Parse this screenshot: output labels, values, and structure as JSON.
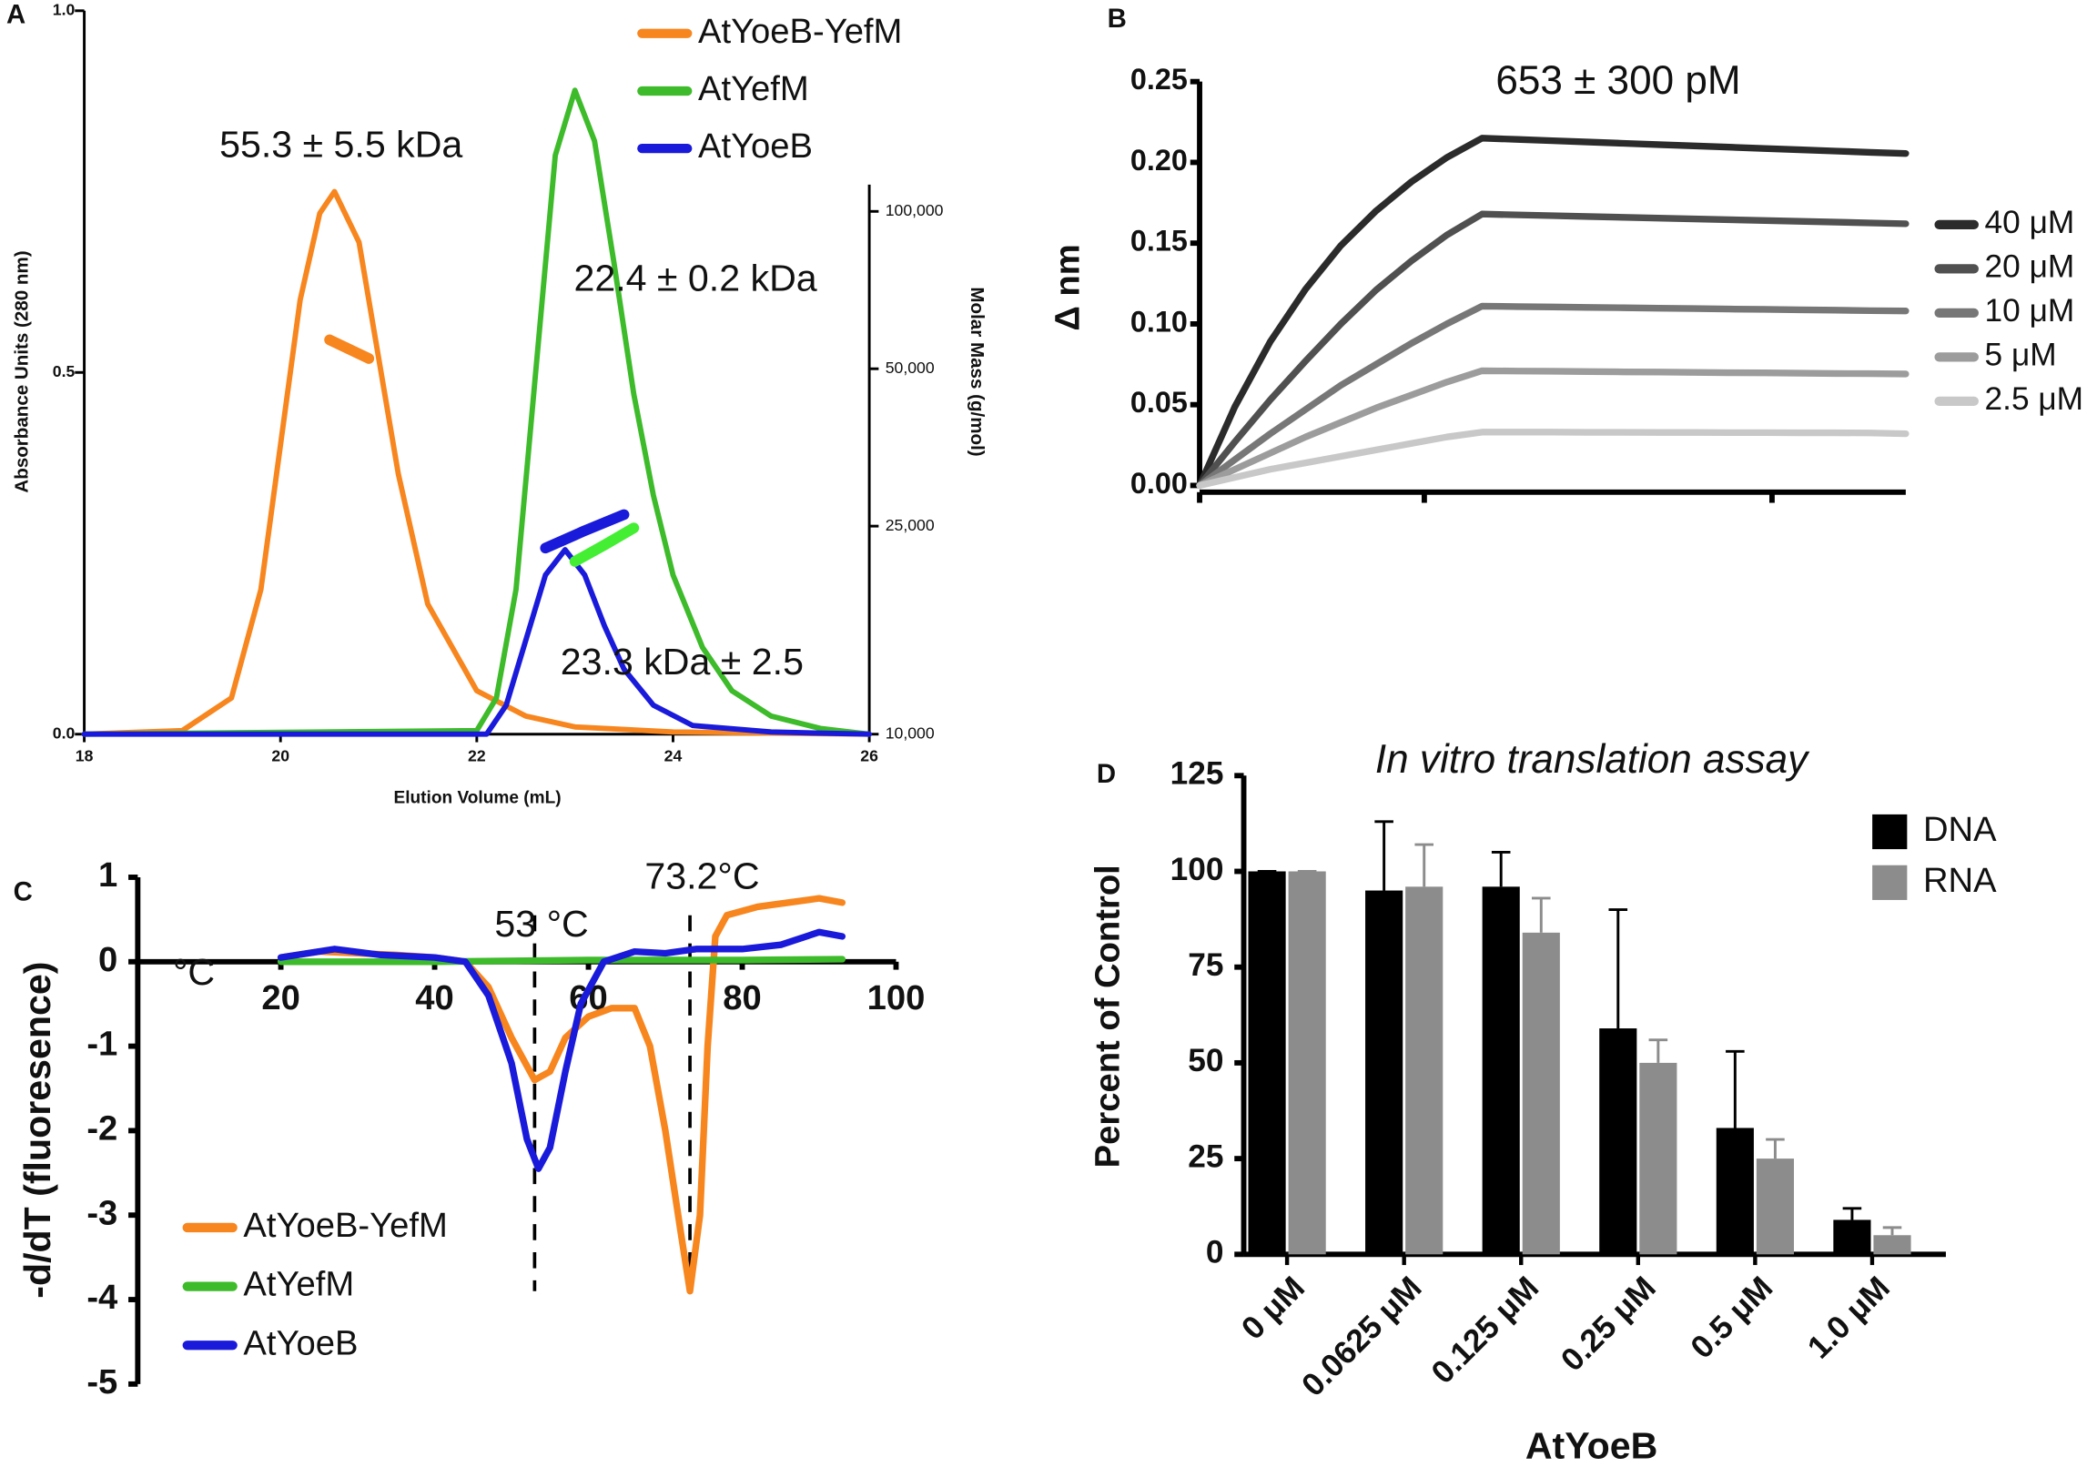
{
  "chart_data": [
    {
      "type": "line",
      "label": "A",
      "x_label": "Elution Volume (mL)",
      "y_label": "Absorbance Units (280 nm)",
      "y2_label": "Molar Mass (g/mol)",
      "annotations": [
        "55.3 ± 5.5 kDa",
        "22.4 ± 0.2 kDa",
        "23.3 kDa ± 2.5"
      ],
      "xlim": [
        18,
        26
      ],
      "xticks": [
        18,
        20,
        22,
        24,
        26
      ],
      "ylim": [
        0,
        1
      ],
      "yticks": [
        {
          "value": 0,
          "label": "0.0"
        },
        0.5,
        {
          "value": 1,
          "label": "1.0"
        }
      ],
      "y2lim": [
        10000,
        242000
      ],
      "y2log": true,
      "y2ticks": [
        {
          "value": 10000,
          "label": "10,000"
        },
        {
          "value": 25000,
          "label": "25,000"
        },
        {
          "value": 50000,
          "label": "50,000"
        },
        {
          "value": 100000,
          "label": "100,000"
        }
      ],
      "legend": "upper right",
      "series": [
        {
          "name": "AtYoeB-YefM",
          "color": "#f7861f",
          "x": [
            18,
            19,
            19.5,
            19.8,
            20,
            20.2,
            20.4,
            20.55,
            20.8,
            21,
            21.2,
            21.5,
            22,
            22.5,
            23,
            24,
            26
          ],
          "values": [
            0,
            0.005,
            0.05,
            0.2,
            0.4,
            0.6,
            0.72,
            0.75,
            0.68,
            0.52,
            0.36,
            0.18,
            0.06,
            0.025,
            0.01,
            0.003,
            0
          ]
        },
        {
          "name": "AtYefM",
          "color": "#3dbb2a",
          "x": [
            18,
            22,
            22.2,
            22.4,
            22.6,
            22.8,
            23,
            23.2,
            23.4,
            23.6,
            23.8,
            24,
            24.3,
            24.6,
            25,
            25.5,
            26
          ],
          "values": [
            0,
            0.005,
            0.05,
            0.2,
            0.5,
            0.8,
            0.89,
            0.82,
            0.65,
            0.47,
            0.33,
            0.22,
            0.12,
            0.06,
            0.025,
            0.008,
            0
          ]
        },
        {
          "name": "AtYoeB",
          "color": "#1a1adb",
          "x": [
            18,
            22.1,
            22.3,
            22.5,
            22.7,
            22.9,
            23.1,
            23.3,
            23.5,
            23.8,
            24.2,
            25,
            26
          ],
          "values": [
            0,
            0,
            0.04,
            0.13,
            0.22,
            0.255,
            0.22,
            0.15,
            0.09,
            0.04,
            0.012,
            0.003,
            0
          ]
        },
        {
          "color": "#f7861f",
          "axis": "y2",
          "x": [
            20.5,
            20.7,
            20.9
          ],
          "values": [
            56800,
            54500,
            52300
          ]
        },
        {
          "color": "#44ee33",
          "axis": "y2",
          "x": [
            23.0,
            23.3,
            23.6
          ],
          "values": [
            21400,
            23000,
            24800
          ]
        },
        {
          "color": "#1a1adb",
          "axis": "y2",
          "x": [
            22.7,
            23.1,
            23.5
          ],
          "values": [
            22700,
            24500,
            26300
          ]
        }
      ]
    },
    {
      "type": "line",
      "label": "B",
      "y_label": "Δ nm",
      "annotations": [
        "653 ± 300 pM"
      ],
      "ylim": [
        0,
        0.25
      ],
      "yticks": [
        {
          "value": 0,
          "label": "0.00"
        },
        0.05,
        {
          "value": 0.1,
          "label": "0.10"
        },
        0.15,
        {
          "value": 0.2,
          "label": "0.20"
        },
        0.25
      ],
      "legend": "right",
      "series": [
        {
          "name": "40 μM",
          "color": "#2b2b2b",
          "values": [
            0,
            0.0488,
            0.089,
            0.1215,
            0.1485,
            0.17,
            0.188,
            0.203,
            0.215,
            0.2142,
            0.2134,
            0.2126,
            0.2118,
            0.211,
            0.2102,
            0.2094,
            0.2086,
            0.2078,
            0.207,
            0.2062,
            0.2055
          ]
        },
        {
          "name": "20 μM",
          "color": "#505050",
          "values": [
            0,
            0.027,
            0.053,
            0.077,
            0.1,
            0.121,
            0.139,
            0.155,
            0.168,
            0.1675,
            0.167,
            0.1665,
            0.166,
            0.1655,
            0.165,
            0.1645,
            0.164,
            0.1635,
            0.163,
            0.1625,
            0.162
          ]
        },
        {
          "name": "10 μM",
          "color": "#777777",
          "values": [
            0,
            0.016,
            0.032,
            0.047,
            0.062,
            0.075,
            0.088,
            0.1,
            0.111,
            0.1107,
            0.1105,
            0.1102,
            0.11,
            0.1097,
            0.1095,
            0.1092,
            0.109,
            0.1087,
            0.1085,
            0.1082,
            0.108
          ]
        },
        {
          "name": "5 μM",
          "color": "#9c9c9c",
          "values": [
            0,
            0.01,
            0.02,
            0.03,
            0.039,
            0.048,
            0.056,
            0.064,
            0.071,
            0.0708,
            0.0707,
            0.0705,
            0.0703,
            0.0702,
            0.07,
            0.0698,
            0.0697,
            0.0695,
            0.0693,
            0.0692,
            0.069
          ]
        },
        {
          "name": "2.5 μM",
          "color": "#c8c8c8",
          "values": [
            0,
            0.005,
            0.01,
            0.014,
            0.018,
            0.022,
            0.026,
            0.03,
            0.033,
            0.033,
            0.033,
            0.0329,
            0.0329,
            0.0328,
            0.0328,
            0.0327,
            0.0327,
            0.0326,
            0.0326,
            0.0325,
            0.032
          ]
        }
      ]
    },
    {
      "type": "line",
      "label": "C",
      "x_label": "°C",
      "y_label": "-d/dT (fluoresence)",
      "annotations": [
        "53 °C",
        "73.2°C"
      ],
      "vlines": [
        53,
        73.2
      ],
      "xlim": [
        0,
        100
      ],
      "xticks": [
        20,
        40,
        60,
        80,
        100
      ],
      "ylim": [
        -5,
        1
      ],
      "yticks": [
        1,
        0,
        -1,
        -2,
        -3,
        -4,
        -5
      ],
      "legend": "lower left",
      "series": [
        {
          "name": "AtYoeB-YefM",
          "color": "#f7861f",
          "x": [
            20,
            25,
            30,
            35,
            40,
            44,
            47,
            50,
            53,
            55,
            57,
            60,
            63,
            66,
            68,
            70,
            72,
            73.2,
            74.5,
            75.5,
            76.5,
            78,
            82,
            86,
            90,
            93
          ],
          "values": [
            0.05,
            0.12,
            0.1,
            0.08,
            0.05,
            0,
            -0.3,
            -0.9,
            -1.4,
            -1.3,
            -0.9,
            -0.65,
            -0.55,
            -0.55,
            -1.0,
            -2.0,
            -3.2,
            -3.9,
            -3.0,
            -1.0,
            0.3,
            0.55,
            0.65,
            0.7,
            0.75,
            0.7
          ]
        },
        {
          "name": "AtYefM",
          "color": "#3dbb2a",
          "x": [
            20,
            40,
            60,
            80,
            93
          ],
          "values": [
            0,
            0,
            0.02,
            0.02,
            0.03
          ]
        },
        {
          "name": "AtYoeB",
          "color": "#1a1adb",
          "x": [
            20,
            27,
            33,
            40,
            44,
            47,
            50,
            52,
            53.5,
            55,
            57,
            59,
            62,
            66,
            70,
            74,
            80,
            85,
            90,
            93
          ],
          "values": [
            0.05,
            0.15,
            0.08,
            0.05,
            0,
            -0.4,
            -1.2,
            -2.1,
            -2.45,
            -2.2,
            -1.3,
            -0.5,
            0,
            0.12,
            0.1,
            0.15,
            0.15,
            0.2,
            0.35,
            0.3
          ]
        }
      ]
    },
    {
      "type": "bar",
      "label": "D",
      "title": "In vitro translation assay",
      "x_label": "AtYoeB",
      "y_label": "Percent of Control",
      "categories": [
        "0 μM",
        "0.0625 μM",
        "0.125 μM",
        "0.25 μM",
        "0.5 μM",
        "1.0 μM"
      ],
      "ylim": [
        0,
        125
      ],
      "yticks": [
        0,
        25,
        50,
        75,
        100,
        125
      ],
      "legend": "upper right",
      "series": [
        {
          "name": "DNA",
          "color": "#000000",
          "values": [
            100,
            95,
            96,
            59,
            33,
            9
          ],
          "errors": [
            0,
            18,
            9,
            31,
            20,
            3
          ]
        },
        {
          "name": "RNA",
          "color": "#8c8c8c",
          "values": [
            100,
            96,
            84,
            50,
            25,
            5
          ],
          "errors": [
            0,
            11,
            9,
            6,
            5,
            2
          ]
        }
      ]
    }
  ]
}
